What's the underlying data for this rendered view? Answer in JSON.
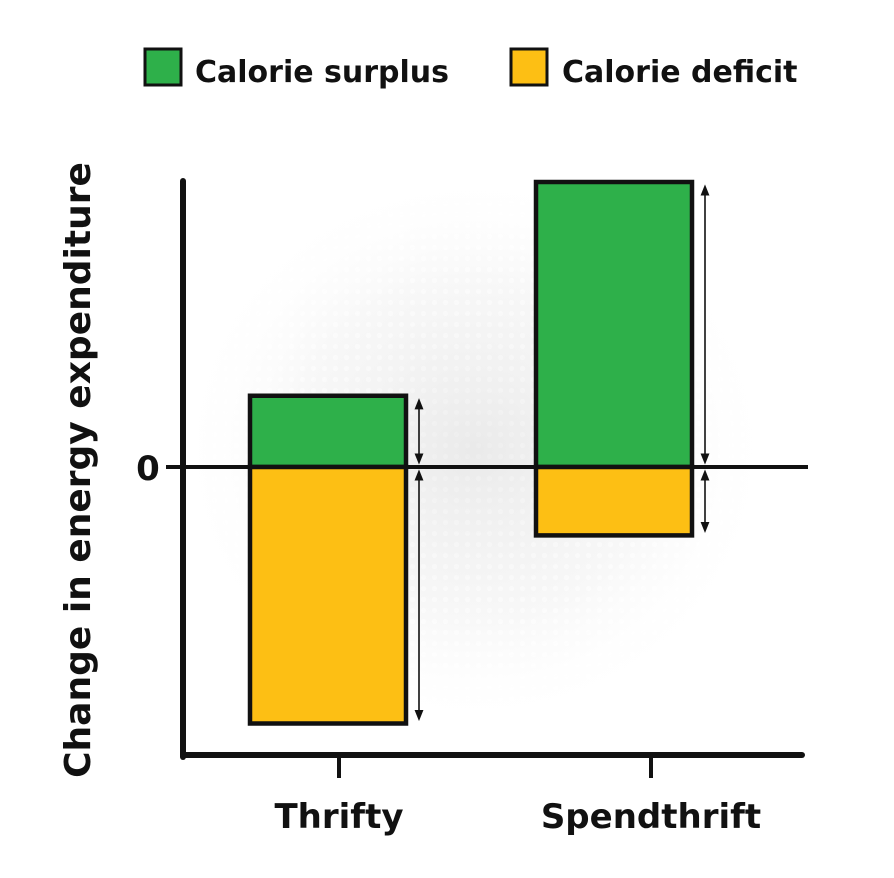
{
  "chart_data": {
    "type": "bar",
    "stacked": true,
    "title": "",
    "xlabel": "",
    "ylabel": "Change in energy expenditure",
    "categories": [
      "Thrifty",
      "Spendthrift"
    ],
    "series": [
      {
        "name": "Calorie surplus",
        "color": "#2eb04a",
        "values": [
          0.25,
          1.0
        ]
      },
      {
        "name": "Calorie deficit",
        "color": "#fdbf14",
        "values": [
          -0.9,
          -0.24
        ]
      }
    ],
    "y_tick_labels": [
      "0"
    ],
    "ylim": [
      -1.02,
      1.1
    ],
    "legend_position": "top",
    "grid": false,
    "annotations": "double-headed arrows beside each bar segment indicating magnitude"
  }
}
